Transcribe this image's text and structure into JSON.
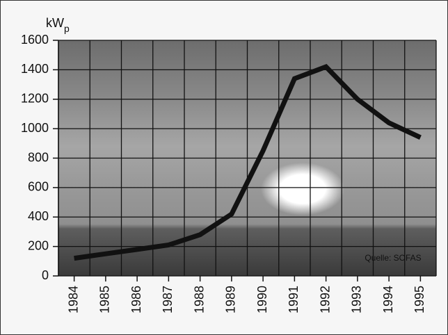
{
  "chart_data": {
    "type": "line",
    "y_label": "kW",
    "y_label_subscript": "p",
    "annotation": "Quelle: SOFAS",
    "categories": [
      "1984",
      "1985",
      "1986",
      "1987",
      "1988",
      "1989",
      "1990",
      "1991",
      "1992",
      "1993",
      "1994",
      "1995"
    ],
    "values": [
      120,
      150,
      180,
      210,
      280,
      420,
      850,
      1340,
      1420,
      1200,
      1040,
      940
    ],
    "color": "#111111",
    "ylim": [
      0,
      1600
    ],
    "yticks": [
      0,
      200,
      400,
      600,
      800,
      1000,
      1200,
      1400,
      1600
    ],
    "grid": true
  }
}
